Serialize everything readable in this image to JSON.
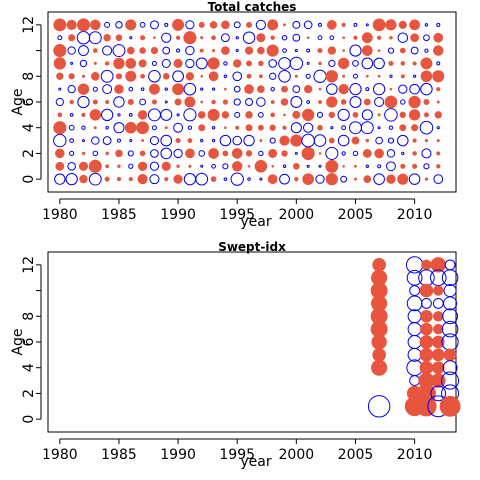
{
  "colors": {
    "positive": "#e8553e",
    "negative": "#0000ee",
    "axis": "#000000"
  },
  "chart_data": [
    {
      "type": "scatter",
      "subtype": "bubble-residuals",
      "title": "Total catches",
      "xlabel": "year",
      "ylabel": "Age",
      "xlim": [
        1979,
        2013.5
      ],
      "ylim": [
        -1,
        13
      ],
      "x_ticks": [
        1980,
        1985,
        1990,
        1995,
        2000,
        2005,
        2010
      ],
      "y_ticks": [
        0,
        2,
        4,
        6,
        8,
        12
      ],
      "y_tick_marks": [
        0,
        2,
        4,
        6,
        8,
        10,
        12
      ],
      "years": [
        1980,
        2012
      ],
      "ages": [
        0,
        12
      ],
      "grid": false,
      "legend": "none",
      "note": "full year-by-age grid of residual bubbles; red = positive, blue open = negative"
    },
    {
      "type": "scatter",
      "subtype": "bubble-residuals",
      "title": "Swept-idx",
      "xlabel": "year",
      "ylabel": "Age",
      "xlim": [
        1979,
        2013.5
      ],
      "ylim": [
        -1,
        13
      ],
      "x_ticks": [
        1980,
        1985,
        1990,
        1995,
        2000,
        2005,
        2010
      ],
      "y_ticks": [
        0,
        2,
        4,
        6,
        8,
        12
      ],
      "y_tick_marks": [
        0,
        2,
        4,
        6,
        8,
        10,
        12
      ],
      "grid": false,
      "legend": "none",
      "points": [
        {
          "x": 2007,
          "y": 12,
          "size": 0.35,
          "sign": 1
        },
        {
          "x": 2007,
          "y": 11,
          "size": 0.5,
          "sign": 1
        },
        {
          "x": 2007,
          "y": 10,
          "size": 0.55,
          "sign": 1
        },
        {
          "x": 2007,
          "y": 9,
          "size": 0.5,
          "sign": 1
        },
        {
          "x": 2007,
          "y": 8,
          "size": 0.55,
          "sign": 1
        },
        {
          "x": 2007,
          "y": 7,
          "size": 0.55,
          "sign": 1
        },
        {
          "x": 2007,
          "y": 6,
          "size": 0.45,
          "sign": 1
        },
        {
          "x": 2007,
          "y": 5,
          "size": 0.35,
          "sign": 1
        },
        {
          "x": 2007,
          "y": 4,
          "size": 0.5,
          "sign": 1
        },
        {
          "x": 2007,
          "y": 1,
          "size": 0.95,
          "sign": -1
        },
        {
          "x": 2010,
          "y": 12,
          "size": 0.55,
          "sign": -1
        },
        {
          "x": 2010,
          "y": 11,
          "size": 0.45,
          "sign": -1
        },
        {
          "x": 2010,
          "y": 10,
          "size": 0.2,
          "sign": -1
        },
        {
          "x": 2010,
          "y": 9,
          "size": 0.45,
          "sign": -1
        },
        {
          "x": 2010,
          "y": 8,
          "size": 0.35,
          "sign": -1
        },
        {
          "x": 2010,
          "y": 7,
          "size": 0.35,
          "sign": -1
        },
        {
          "x": 2010,
          "y": 6,
          "size": 0.35,
          "sign": -1
        },
        {
          "x": 2010,
          "y": 5,
          "size": 0.35,
          "sign": -1
        },
        {
          "x": 2010,
          "y": 4,
          "size": 0.5,
          "sign": -1
        },
        {
          "x": 2010,
          "y": 3,
          "size": 0.2,
          "sign": -1
        },
        {
          "x": 2010,
          "y": 2,
          "size": 0.45,
          "sign": 1
        },
        {
          "x": 2010,
          "y": 1,
          "size": 0.75,
          "sign": 1
        },
        {
          "x": 2011,
          "y": 12,
          "size": 0.2,
          "sign": 1
        },
        {
          "x": 2011,
          "y": 11,
          "size": 0.5,
          "sign": -1
        },
        {
          "x": 2011,
          "y": 10,
          "size": 0.35,
          "sign": 1
        },
        {
          "x": 2011,
          "y": 9,
          "size": 0.2,
          "sign": -1
        },
        {
          "x": 2011,
          "y": 8,
          "size": 0.3,
          "sign": 1
        },
        {
          "x": 2011,
          "y": 7,
          "size": 0.3,
          "sign": 1
        },
        {
          "x": 2011,
          "y": 6,
          "size": 0.35,
          "sign": 1
        },
        {
          "x": 2011,
          "y": 5,
          "size": 0.35,
          "sign": 1
        },
        {
          "x": 2011,
          "y": 4,
          "size": 0.35,
          "sign": 1
        },
        {
          "x": 2011,
          "y": 3,
          "size": 0.5,
          "sign": 1
        },
        {
          "x": 2011,
          "y": 2,
          "size": 0.7,
          "sign": 1
        },
        {
          "x": 2011,
          "y": 1,
          "size": 0.8,
          "sign": 1
        },
        {
          "x": 2012,
          "y": 12,
          "size": 0.45,
          "sign": 1
        },
        {
          "x": 2012,
          "y": 11,
          "size": 0.5,
          "sign": -1
        },
        {
          "x": 2012,
          "y": 10,
          "size": 0.2,
          "sign": 1
        },
        {
          "x": 2012,
          "y": 9,
          "size": 0.2,
          "sign": -1
        },
        {
          "x": 2012,
          "y": 8,
          "size": 0.2,
          "sign": 1
        },
        {
          "x": 2012,
          "y": 7,
          "size": 0.2,
          "sign": 1
        },
        {
          "x": 2012,
          "y": 6,
          "size": 0.3,
          "sign": 1
        },
        {
          "x": 2012,
          "y": 5,
          "size": 0.3,
          "sign": 1
        },
        {
          "x": 2012,
          "y": 4,
          "size": 0.3,
          "sign": 1
        },
        {
          "x": 2012,
          "y": 3,
          "size": 0.4,
          "sign": 1
        },
        {
          "x": 2012,
          "y": 2,
          "size": 0.45,
          "sign": -1
        },
        {
          "x": 2012,
          "y": 1,
          "size": 0.9,
          "sign": -1
        },
        {
          "x": 2013,
          "y": 12,
          "size": 0.2,
          "sign": -1
        },
        {
          "x": 2013,
          "y": 11,
          "size": 0.5,
          "sign": -1
        },
        {
          "x": 2013,
          "y": 10,
          "size": 0.3,
          "sign": -1
        },
        {
          "x": 2013,
          "y": 9,
          "size": 0.35,
          "sign": -1
        },
        {
          "x": 2013,
          "y": 8,
          "size": 0.45,
          "sign": -1
        },
        {
          "x": 2013,
          "y": 7,
          "size": 0.5,
          "sign": -1
        },
        {
          "x": 2013,
          "y": 6,
          "size": 0.55,
          "sign": -1
        },
        {
          "x": 2013,
          "y": 5,
          "size": 0.3,
          "sign": 1
        },
        {
          "x": 2013,
          "y": 4,
          "size": 0.4,
          "sign": -1
        },
        {
          "x": 2013,
          "y": 3,
          "size": 0.6,
          "sign": -1
        },
        {
          "x": 2013,
          "y": 2,
          "size": 0.6,
          "sign": -1
        },
        {
          "x": 2013,
          "y": 1,
          "size": 0.85,
          "sign": 1
        }
      ]
    }
  ]
}
